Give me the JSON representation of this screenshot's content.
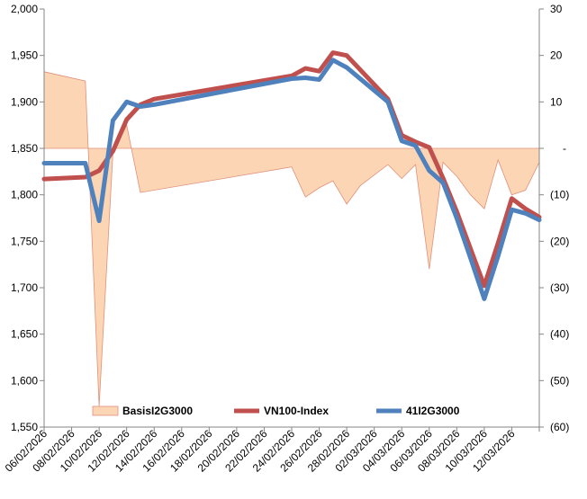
{
  "chart_data": {
    "type": "line",
    "title": "",
    "xlabel": "",
    "ylabel": "",
    "y_left": {
      "ylim": [
        1550,
        2000
      ],
      "ticks": [
        1550,
        1600,
        1650,
        1700,
        1750,
        1800,
        1850,
        1900,
        1950,
        2000
      ],
      "tick_labels": [
        "1,550",
        "1,600",
        "1,650",
        "1,700",
        "1,750",
        "1,800",
        "1,850",
        "1,900",
        "1,950",
        "2,000"
      ]
    },
    "y_right": {
      "ylim": [
        -60,
        30
      ],
      "ticks": [
        30,
        20,
        10,
        0,
        -10,
        -20,
        -30,
        -40,
        -50,
        -60
      ],
      "tick_labels": [
        "30",
        "20",
        "10",
        "-",
        "(10)",
        "(20)",
        "(30)",
        "(40)",
        "(50)",
        "(60)"
      ]
    },
    "x_range": [
      0,
      36
    ],
    "x_tick_positions": [
      0,
      2,
      4,
      6,
      8,
      10,
      12,
      14,
      16,
      18,
      20,
      22,
      24,
      26,
      28,
      30,
      32,
      34,
      36
    ],
    "x_tick_labels": [
      "06/02/2026",
      "08/02/2026",
      "10/02/2026",
      "12/02/2026",
      "14/02/2026",
      "16/02/2026",
      "18/02/2026",
      "20/02/2026",
      "22/02/2026",
      "24/02/2026",
      "26/02/2026",
      "28/02/2026",
      "02/03/2026",
      "04/03/2026",
      "06/03/2026",
      "08/03/2026",
      "10/03/2026",
      "12/03/2026",
      ""
    ],
    "legend_position": "bottom",
    "series": [
      {
        "name": "BasisI2G3000",
        "type": "area",
        "axis": "right",
        "color": "#fcd5b4",
        "edge_color": "#e0907a",
        "x": [
          0,
          3,
          4,
          5,
          6,
          7,
          18,
          19,
          20,
          21,
          22,
          23,
          25,
          26,
          27,
          28,
          29,
          30,
          31,
          32,
          33,
          34,
          35,
          36
        ],
        "values": [
          16.5,
          14.5,
          -55.5,
          -1,
          5,
          -9.5,
          -4,
          -10.5,
          -8.5,
          -7,
          -12,
          -8,
          -3.5,
          -6.5,
          -3.5,
          -26,
          -3,
          -6,
          -10,
          -13,
          -2.5,
          -10,
          -9,
          -3
        ]
      },
      {
        "name": "VN100-Index",
        "type": "line",
        "axis": "left",
        "color": "#c0504d",
        "x": [
          0,
          3,
          4,
          5,
          6,
          7,
          8,
          18,
          19,
          20,
          21,
          22,
          25,
          26,
          27,
          28,
          29,
          30,
          31,
          32,
          33,
          34,
          35,
          36
        ],
        "values": [
          1817,
          1819,
          1826,
          1847,
          1881,
          1897,
          1903,
          1928,
          1936,
          1933,
          1953,
          1950,
          1903,
          1864,
          1857,
          1851,
          1818,
          1782,
          1742,
          1702,
          1748,
          1796,
          1785,
          1776
        ]
      },
      {
        "name": "41I2G3000",
        "type": "line",
        "axis": "left",
        "color": "#4f81bd",
        "x": [
          0,
          3,
          4,
          5,
          6,
          7,
          8,
          18,
          19,
          20,
          21,
          22,
          25,
          26,
          27,
          28,
          29,
          30,
          31,
          32,
          33,
          34,
          35,
          36
        ],
        "values": [
          1834,
          1834,
          1772,
          1880,
          1900,
          1895,
          1897,
          1925,
          1926,
          1924,
          1945,
          1937,
          1900,
          1858,
          1853,
          1826,
          1813,
          1775,
          1732,
          1688,
          1734,
          1784,
          1780,
          1773
        ]
      }
    ]
  }
}
